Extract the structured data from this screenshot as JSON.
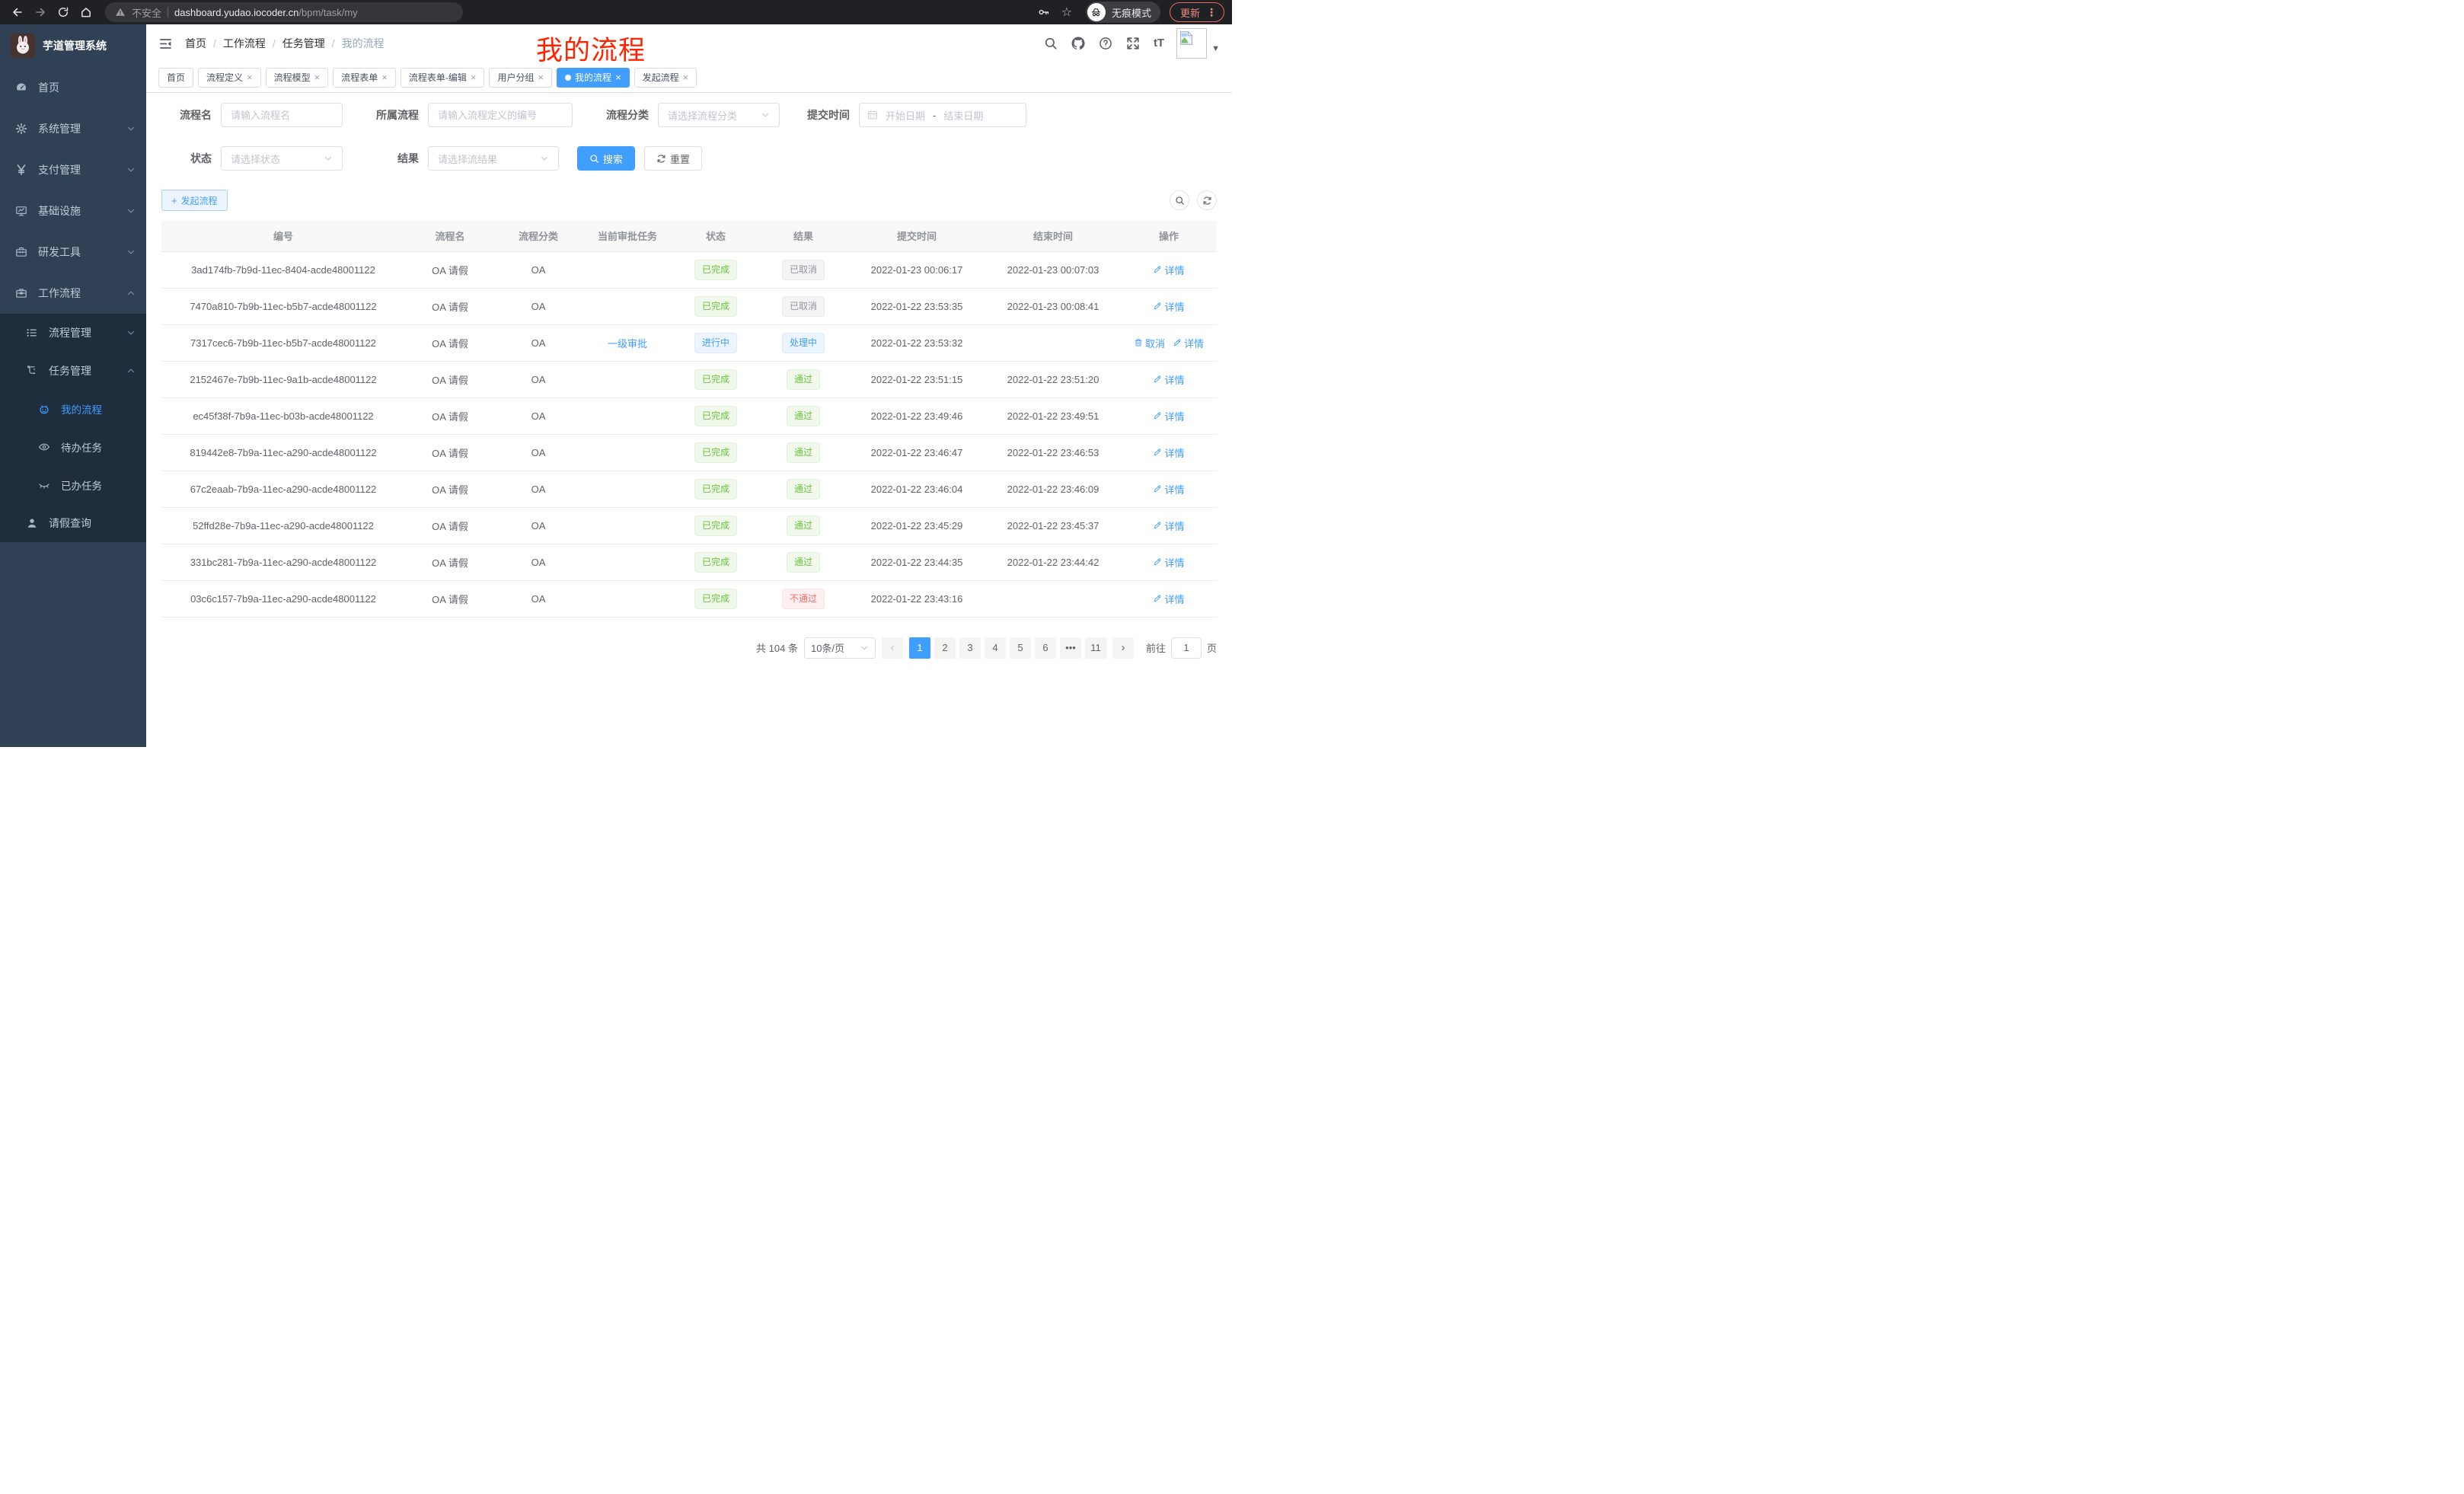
{
  "browser": {
    "security": "不安全",
    "url_host": "dashboard.yudao.iocoder.cn",
    "url_path": "/bpm/task/my",
    "incognito": "无痕模式",
    "update": "更新"
  },
  "glyphs": {
    "close": "×",
    "plus": "+",
    "caret": "▼",
    "dots_vertical": "⋮",
    "star": "☆",
    "font_size": "tT",
    "prev": "‹",
    "next": "›",
    "more": "•••"
  },
  "colors": {
    "accent": "#409eff",
    "success": "#67c23a",
    "info": "#909399",
    "danger": "#f56c6c",
    "annotation_red": "#ff2301",
    "sidebar_bg": "#304156",
    "submenu_bg": "#1f2d3d"
  },
  "sidebar": {
    "logo_title": "芋道管理系统",
    "items": [
      {
        "label": "首页"
      },
      {
        "label": "系统管理"
      },
      {
        "label": "支付管理"
      },
      {
        "label": "基础设施"
      },
      {
        "label": "研发工具"
      },
      {
        "label": "工作流程"
      }
    ],
    "submenu": {
      "process_mgmt": "流程管理",
      "task_mgmt": "任务管理",
      "my_process": "我的流程",
      "todo_task": "待办任务",
      "done_task": "已办任务",
      "leave_query": "请假查询"
    }
  },
  "navbar": {
    "breadcrumb": [
      "首页",
      "工作流程",
      "任务管理",
      "我的流程"
    ],
    "annotation": "我的流程"
  },
  "tabs": [
    {
      "label": "首页",
      "closable": false,
      "active": false
    },
    {
      "label": "流程定义",
      "closable": true,
      "active": false
    },
    {
      "label": "流程模型",
      "closable": true,
      "active": false
    },
    {
      "label": "流程表单",
      "closable": true,
      "active": false
    },
    {
      "label": "流程表单-编辑",
      "closable": true,
      "active": false
    },
    {
      "label": "用户分组",
      "closable": true,
      "active": false
    },
    {
      "label": "我的流程",
      "closable": true,
      "active": true
    },
    {
      "label": "发起流程",
      "closable": true,
      "active": false
    }
  ],
  "filters": {
    "name_label": "流程名",
    "name_placeholder": "请输入流程名",
    "definition_label": "所属流程",
    "definition_placeholder": "请输入流程定义的编号",
    "category_label": "流程分类",
    "category_placeholder": "请选择流程分类",
    "time_label": "提交时间",
    "start_placeholder": "开始日期",
    "range_separator": "-",
    "end_placeholder": "结束日期",
    "status_label": "状态",
    "status_placeholder": "请选择状态",
    "result_label": "结果",
    "result_placeholder": "请选择流结果",
    "search_button": "搜索",
    "reset_button": "重置"
  },
  "toolbar": {
    "create": "发起流程"
  },
  "table": {
    "columns": [
      "编号",
      "流程名",
      "流程分类",
      "当前审批任务",
      "状态",
      "结果",
      "提交时间",
      "结束时间",
      "操作"
    ],
    "rows": [
      {
        "id": "3ad174fb-7b9d-11ec-8404-acde48001122",
        "name": "OA 请假",
        "category": "OA",
        "task": "",
        "status": {
          "label": "已完成",
          "type": "success"
        },
        "result": {
          "label": "已取消",
          "type": "info"
        },
        "submit_time": "2022-01-23 00:06:17",
        "end_time": "2022-01-23 00:07:03",
        "actions": [
          {
            "label": "详情",
            "icon": "pen-icon"
          }
        ]
      },
      {
        "id": "7470a810-7b9b-11ec-b5b7-acde48001122",
        "name": "OA 请假",
        "category": "OA",
        "task": "",
        "status": {
          "label": "已完成",
          "type": "success"
        },
        "result": {
          "label": "已取消",
          "type": "info"
        },
        "submit_time": "2022-01-22 23:53:35",
        "end_time": "2022-01-23 00:08:41",
        "actions": [
          {
            "label": "详情",
            "icon": "pen-icon"
          }
        ]
      },
      {
        "id": "7317cec6-7b9b-11ec-b5b7-acde48001122",
        "name": "OA 请假",
        "category": "OA",
        "task": "一级审批",
        "status": {
          "label": "进行中",
          "type": "primary"
        },
        "result": {
          "label": "处理中",
          "type": "primary"
        },
        "submit_time": "2022-01-22 23:53:32",
        "end_time": "",
        "actions": [
          {
            "label": "取消",
            "icon": "trash-icon"
          },
          {
            "label": "详情",
            "icon": "pen-icon"
          }
        ]
      },
      {
        "id": "2152467e-7b9b-11ec-9a1b-acde48001122",
        "name": "OA 请假",
        "category": "OA",
        "task": "",
        "status": {
          "label": "已完成",
          "type": "success"
        },
        "result": {
          "label": "通过",
          "type": "success"
        },
        "submit_time": "2022-01-22 23:51:15",
        "end_time": "2022-01-22 23:51:20",
        "actions": [
          {
            "label": "详情",
            "icon": "pen-icon"
          }
        ]
      },
      {
        "id": "ec45f38f-7b9a-11ec-b03b-acde48001122",
        "name": "OA 请假",
        "category": "OA",
        "task": "",
        "status": {
          "label": "已完成",
          "type": "success"
        },
        "result": {
          "label": "通过",
          "type": "success"
        },
        "submit_time": "2022-01-22 23:49:46",
        "end_time": "2022-01-22 23:49:51",
        "actions": [
          {
            "label": "详情",
            "icon": "pen-icon"
          }
        ]
      },
      {
        "id": "819442e8-7b9a-11ec-a290-acde48001122",
        "name": "OA 请假",
        "category": "OA",
        "task": "",
        "status": {
          "label": "已完成",
          "type": "success"
        },
        "result": {
          "label": "通过",
          "type": "success"
        },
        "submit_time": "2022-01-22 23:46:47",
        "end_time": "2022-01-22 23:46:53",
        "actions": [
          {
            "label": "详情",
            "icon": "pen-icon"
          }
        ]
      },
      {
        "id": "67c2eaab-7b9a-11ec-a290-acde48001122",
        "name": "OA 请假",
        "category": "OA",
        "task": "",
        "status": {
          "label": "已完成",
          "type": "success"
        },
        "result": {
          "label": "通过",
          "type": "success"
        },
        "submit_time": "2022-01-22 23:46:04",
        "end_time": "2022-01-22 23:46:09",
        "actions": [
          {
            "label": "详情",
            "icon": "pen-icon"
          }
        ]
      },
      {
        "id": "52ffd28e-7b9a-11ec-a290-acde48001122",
        "name": "OA 请假",
        "category": "OA",
        "task": "",
        "status": {
          "label": "已完成",
          "type": "success"
        },
        "result": {
          "label": "通过",
          "type": "success"
        },
        "submit_time": "2022-01-22 23:45:29",
        "end_time": "2022-01-22 23:45:37",
        "actions": [
          {
            "label": "详情",
            "icon": "pen-icon"
          }
        ]
      },
      {
        "id": "331bc281-7b9a-11ec-a290-acde48001122",
        "name": "OA 请假",
        "category": "OA",
        "task": "",
        "status": {
          "label": "已完成",
          "type": "success"
        },
        "result": {
          "label": "通过",
          "type": "success"
        },
        "submit_time": "2022-01-22 23:44:35",
        "end_time": "2022-01-22 23:44:42",
        "actions": [
          {
            "label": "详情",
            "icon": "pen-icon"
          }
        ]
      },
      {
        "id": "03c6c157-7b9a-11ec-a290-acde48001122",
        "name": "OA 请假",
        "category": "OA",
        "task": "",
        "status": {
          "label": "已完成",
          "type": "success"
        },
        "result": {
          "label": "不通过",
          "type": "danger"
        },
        "submit_time": "2022-01-22 23:43:16",
        "end_time": "",
        "actions": [
          {
            "label": "详情",
            "icon": "pen-icon"
          }
        ]
      }
    ]
  },
  "pagination": {
    "total": "共 104 条",
    "page_size": "10条/页",
    "pages": [
      "1",
      "2",
      "3",
      "4",
      "5",
      "6",
      "more",
      "11"
    ],
    "active": "1",
    "goto": "前往",
    "goto_value": "1",
    "page_unit": "页"
  }
}
